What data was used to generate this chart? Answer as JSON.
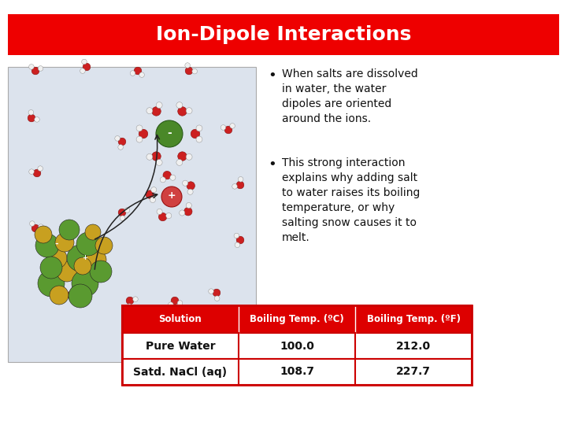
{
  "title": "Ion-Dipole Interactions",
  "title_bg_color": "#ee0000",
  "title_text_color": "#ffffff",
  "slide_bg_color": "#ffffff",
  "b1_lines": [
    "When salts are dissolved",
    "in water, the water",
    "dipoles are oriented",
    "around the ions."
  ],
  "b2_lines": [
    "This strong interaction",
    "explains why adding salt",
    "to water raises its boiling",
    "temperature, or why",
    "salting snow causes it to",
    "melt."
  ],
  "table_header_bg": "#dd0000",
  "table_header_text_color": "#ffffff",
  "table_border_color": "#cc0000",
  "table_headers": [
    "Solution",
    "Boiling Temp. (ºC)",
    "Boiling Temp. (ºF)"
  ],
  "table_rows": [
    [
      "Pure Water",
      "100.0",
      "212.0"
    ],
    [
      "Satd. NaCl (aq)",
      "108.7",
      "227.7"
    ]
  ],
  "text_color": "#111111",
  "bullet_color": "#000000",
  "img_bg": "#dce3ed",
  "green_dark": "#3a7020",
  "green_light": "#5a9a30",
  "yellow": "#c8a020",
  "water_o": "#cc2020",
  "water_h": "#f0f0f0"
}
